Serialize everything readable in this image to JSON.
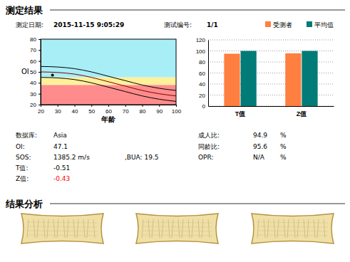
{
  "header": {
    "title": "测定结果",
    "date_label": "测定日期:",
    "date": "2015-11-15 9:05:29",
    "test_label": "测试编号:",
    "test_no": "1/1"
  },
  "chart_data": [
    {
      "type": "line",
      "x_label": "年龄",
      "y_label": "OI",
      "xlim": [
        20,
        100
      ],
      "ylim": [
        20,
        80
      ],
      "xticks": [
        20,
        30,
        40,
        50,
        60,
        70,
        80,
        90,
        100
      ],
      "yticks": [
        20,
        30,
        40,
        50,
        60,
        70,
        80
      ],
      "bands": [
        {
          "from": 45,
          "to": 80,
          "color": "#a8eef7"
        },
        {
          "from": 38,
          "to": 45,
          "color": "#fff09a"
        },
        {
          "from": 20,
          "to": 38,
          "color": "#ff8c8c"
        }
      ],
      "x": [
        20,
        30,
        40,
        50,
        60,
        70,
        80,
        90,
        100
      ],
      "series": [
        {
          "color": "#000000",
          "values": [
            55,
            54.5,
            53,
            50,
            46,
            42,
            38,
            35,
            33
          ]
        },
        {
          "color": "#800000",
          "values": [
            50,
            49.5,
            48,
            45,
            41,
            37,
            33,
            30,
            28
          ]
        },
        {
          "color": "#000000",
          "values": [
            45,
            44.5,
            43,
            40,
            36,
            32,
            28,
            25,
            23
          ]
        },
        {
          "type": "scatter",
          "color": "#000000",
          "marker": "circle",
          "x": [
            27
          ],
          "values": [
            47.1
          ]
        }
      ]
    },
    {
      "type": "bar",
      "categories": [
        "T值",
        "Z值"
      ],
      "ylim": [
        0,
        120
      ],
      "yticks": [
        0,
        20,
        40,
        60,
        80,
        100,
        120
      ],
      "grid": true,
      "legend": "top-right",
      "series": [
        {
          "name": "受测者",
          "color": "#ff7f40",
          "values": [
            94.9,
            95.6
          ]
        },
        {
          "name": "平均值",
          "color": "#007b78",
          "values": [
            100,
            100
          ]
        }
      ]
    }
  ],
  "fields": {
    "left": [
      {
        "label": "数据库:",
        "value": "Asia"
      },
      {
        "label": "OI:",
        "value": "47.1"
      },
      {
        "label": "SOS:",
        "value": "1385.2 m/s",
        "extra": ",BUA: 19.5"
      },
      {
        "label": "T值:",
        "value": "-0.51"
      },
      {
        "label": "Z值:",
        "value": "-0.43",
        "color": "#ff0000"
      }
    ],
    "right": [
      {
        "label": "成人比:",
        "value": "94.9",
        "unit": "%"
      },
      {
        "label": "同龄比:",
        "value": "95.6",
        "unit": "%"
      },
      {
        "label": "OPR:",
        "value": "N/A",
        "unit": "%"
      }
    ]
  },
  "analysis": {
    "title": "结果分析"
  }
}
